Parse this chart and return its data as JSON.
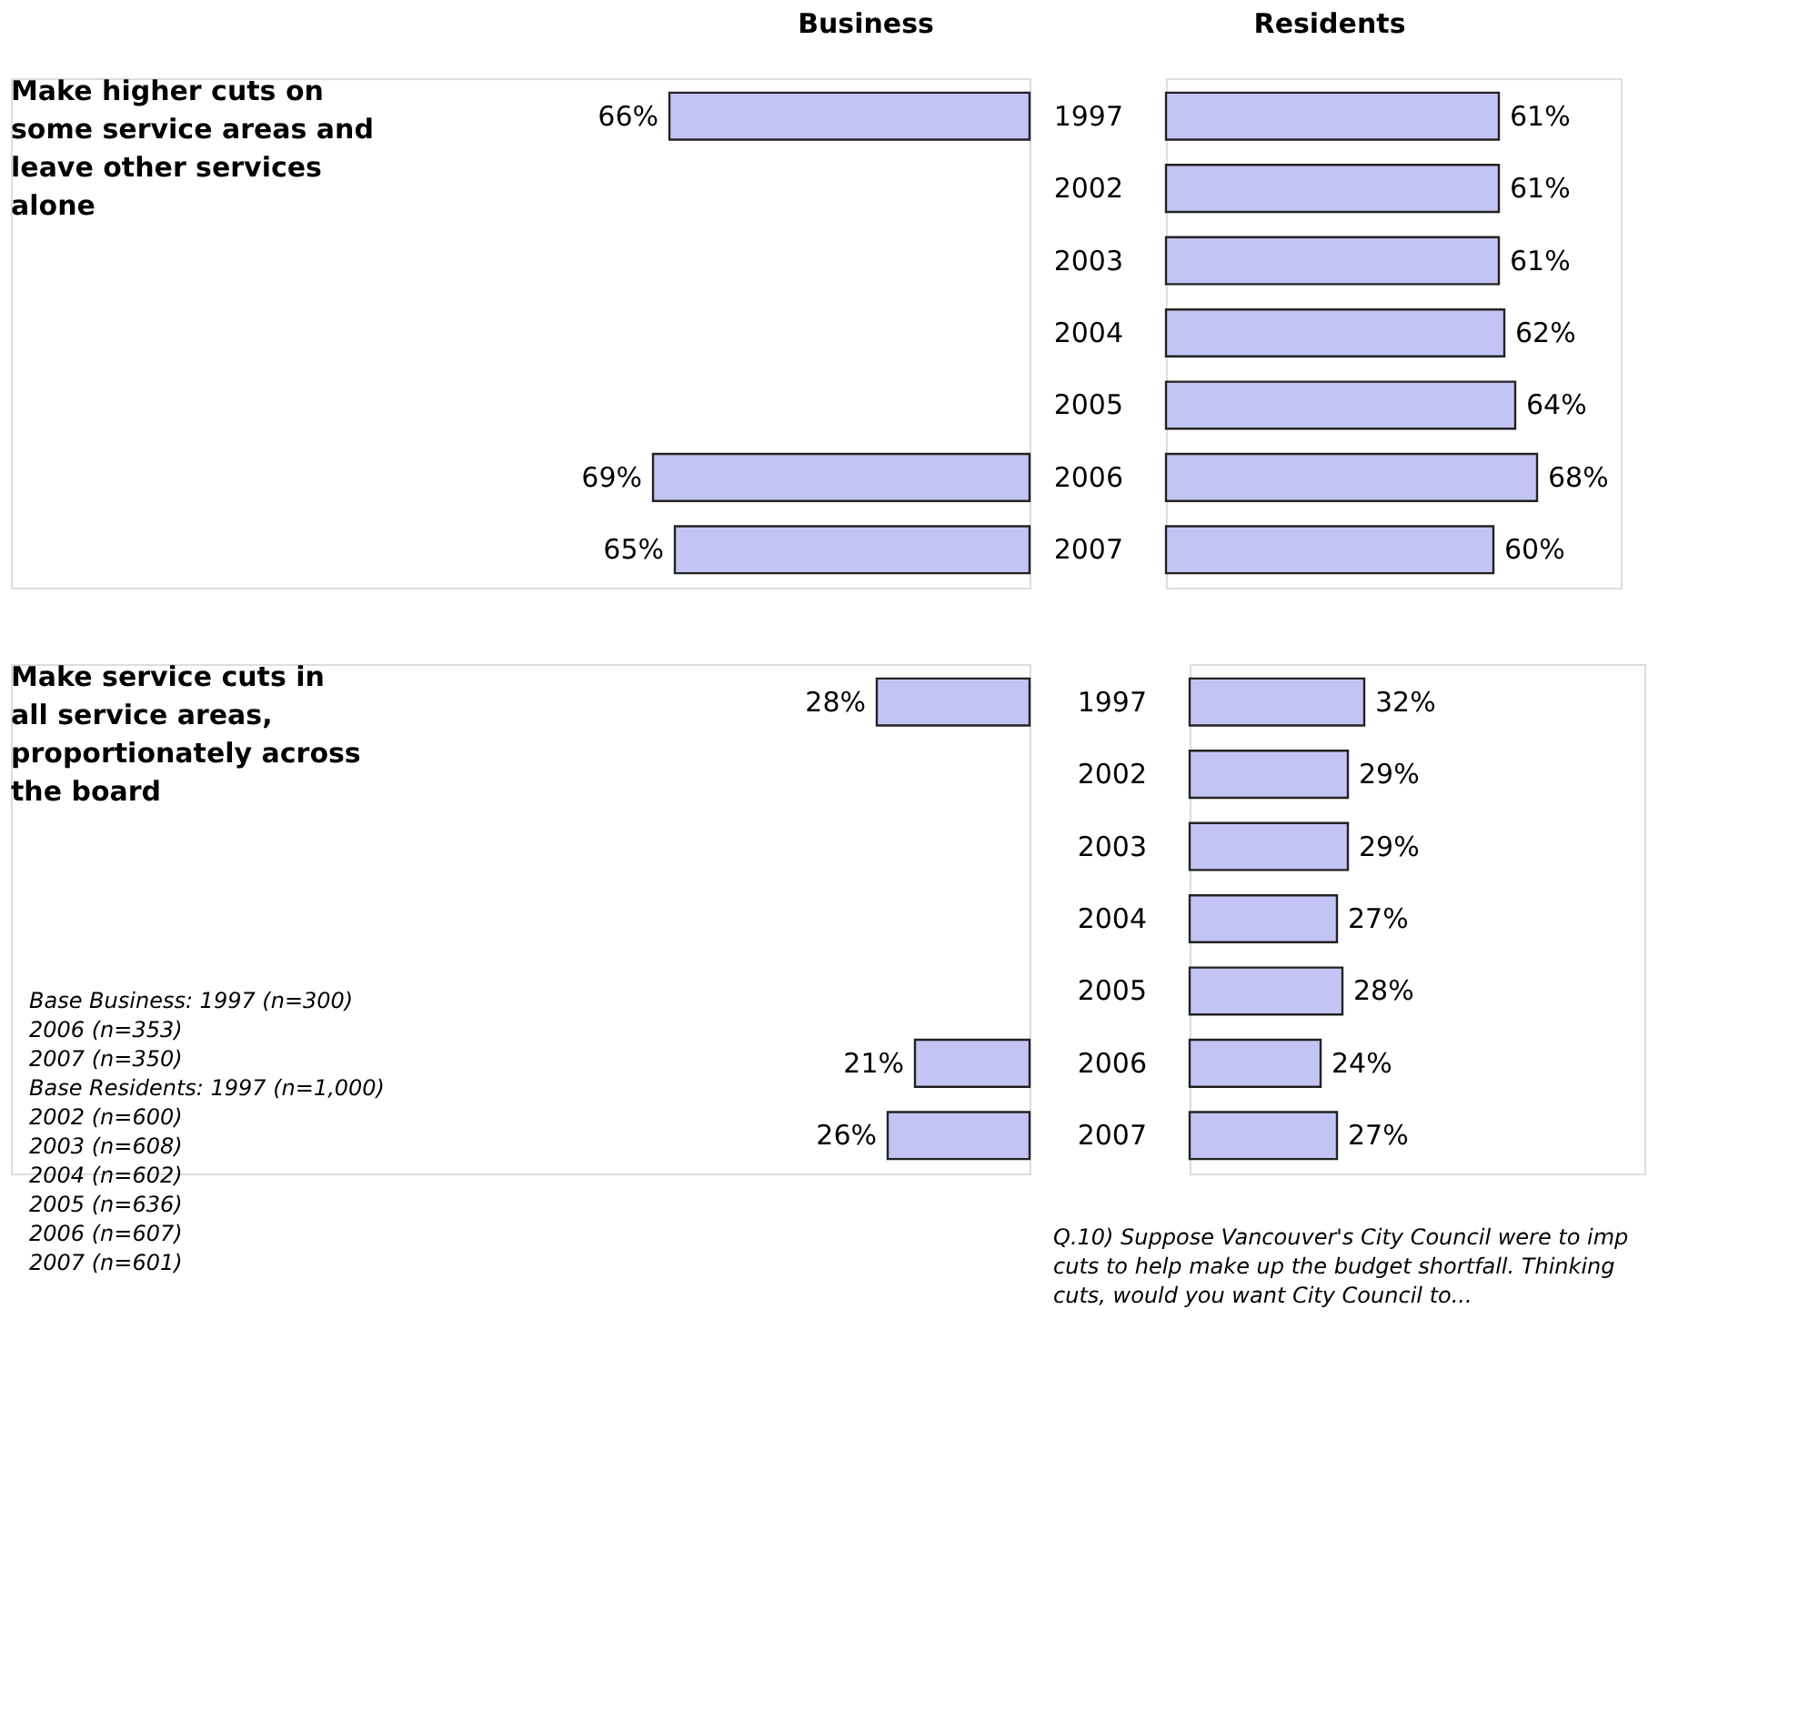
{
  "chart_data": [
    {
      "type": "bar",
      "orientation": "horizontal",
      "categories": [
        "1997",
        "2002",
        "2003",
        "2004",
        "2005",
        "2006",
        "2007"
      ],
      "tick_labels": false,
      "series": [
        {
          "name": "Business",
          "color": "#c4c4f4",
          "values": [
            66,
            null,
            null,
            null,
            null,
            69,
            65
          ],
          "value_labels": [
            "66%",
            null,
            null,
            null,
            null,
            "69%",
            "65%"
          ]
        }
      ],
      "annotations": [
        "Make higher cuts on some service areas and leave other services alone"
      ]
    },
    {
      "type": "bar",
      "orientation": "horizontal",
      "categories": [
        "1997",
        "2002",
        "2003",
        "2004",
        "2005",
        "2006",
        "2007"
      ],
      "series": [
        {
          "name": "Residents",
          "color": "#c4c4f4",
          "values": [
            61,
            61,
            61,
            62,
            64,
            68,
            60
          ],
          "value_labels": [
            "61%",
            "61%",
            "61%",
            "62%",
            "64%",
            "68%",
            "60%"
          ]
        }
      ]
    },
    {
      "type": "bar",
      "orientation": "horizontal",
      "categories": [
        "1997",
        "2002",
        "2003",
        "2004",
        "2005",
        "2006",
        "2007"
      ],
      "tick_labels": false,
      "series": [
        {
          "color": "#c4c4f4",
          "values": [
            28,
            null,
            null,
            null,
            null,
            21,
            26
          ],
          "value_labels": [
            "28%",
            null,
            null,
            null,
            null,
            "21%",
            "26%"
          ]
        }
      ],
      "annotations": [
        "Make service cuts in all service areas, proportionately across the board",
        "Base Business:  1997 (n=300)\n                      2006 (n=353)\n                      2007 (n=350)\nBase Residents: 1997 (n=1,000)\n                      2002 (n=600)\n                      2003 (n=608)\n                      2004 (n=602)\n                      2005 (n=636)\n                      2006 (n=607)\n                      2007 (n=601)"
      ]
    },
    {
      "type": "bar",
      "orientation": "horizontal",
      "categories": [
        "1997",
        "2002",
        "2003",
        "2004",
        "2005",
        "2006",
        "2007"
      ],
      "series": [
        {
          "color": "#c4c4f4",
          "values": [
            32,
            29,
            29,
            27,
            28,
            24,
            27
          ],
          "value_labels": [
            "32%",
            "29%",
            "29%",
            "27%",
            "28%",
            "24%",
            "27%"
          ]
        }
      ],
      "annotations": [
        "Q.10) Suppose Vancouver's City Council were to imp\ncuts to help make up the budget shortfall. Thinking\ncuts, would you want City Council to..."
      ]
    }
  ]
}
